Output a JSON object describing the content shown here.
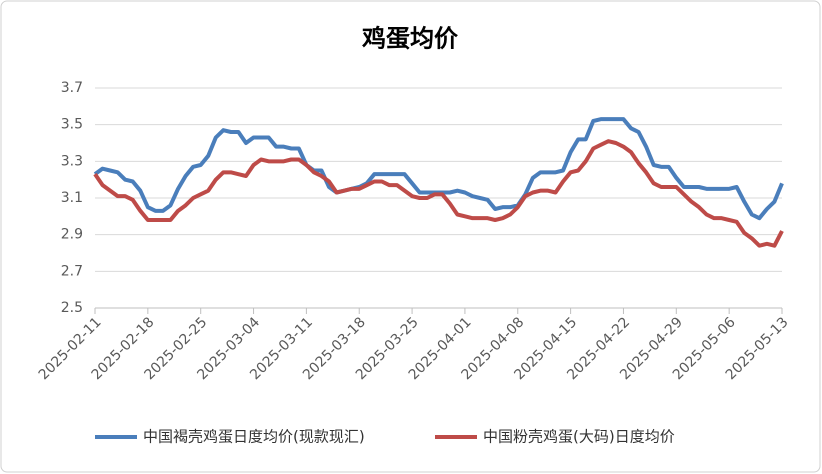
{
  "chart_data": {
    "type": "line",
    "title": "鸡蛋均价",
    "x": [
      "2025-02-11",
      "2025-02-12",
      "2025-02-13",
      "2025-02-14",
      "2025-02-15",
      "2025-02-16",
      "2025-02-17",
      "2025-02-18",
      "2025-02-19",
      "2025-02-20",
      "2025-02-21",
      "2025-02-22",
      "2025-02-23",
      "2025-02-24",
      "2025-02-25",
      "2025-02-26",
      "2025-02-27",
      "2025-02-28",
      "2025-03-01",
      "2025-03-02",
      "2025-03-03",
      "2025-03-04",
      "2025-03-05",
      "2025-03-06",
      "2025-03-07",
      "2025-03-08",
      "2025-03-09",
      "2025-03-10",
      "2025-03-11",
      "2025-03-12",
      "2025-03-13",
      "2025-03-14",
      "2025-03-15",
      "2025-03-16",
      "2025-03-17",
      "2025-03-18",
      "2025-03-19",
      "2025-03-20",
      "2025-03-21",
      "2025-03-22",
      "2025-03-23",
      "2025-03-24",
      "2025-03-25",
      "2025-03-26",
      "2025-03-27",
      "2025-03-28",
      "2025-03-29",
      "2025-03-30",
      "2025-03-31",
      "2025-04-01",
      "2025-04-02",
      "2025-04-03",
      "2025-04-04",
      "2025-04-05",
      "2025-04-06",
      "2025-04-07",
      "2025-04-08",
      "2025-04-09",
      "2025-04-10",
      "2025-04-11",
      "2025-04-12",
      "2025-04-13",
      "2025-04-14",
      "2025-04-15",
      "2025-04-16",
      "2025-04-17",
      "2025-04-18",
      "2025-04-19",
      "2025-04-20",
      "2025-04-21",
      "2025-04-22",
      "2025-04-23",
      "2025-04-24",
      "2025-04-25",
      "2025-04-26",
      "2025-04-27",
      "2025-04-28",
      "2025-04-29",
      "2025-04-30",
      "2025-05-01",
      "2025-05-02",
      "2025-05-03",
      "2025-05-04",
      "2025-05-05",
      "2025-05-06",
      "2025-05-07",
      "2025-05-08",
      "2025-05-09",
      "2025-05-10",
      "2025-05-11",
      "2025-05-12",
      "2025-05-13"
    ],
    "series": [
      {
        "name": "中国褐壳鸡蛋日度均价(现款现汇)",
        "color": "#4a7ebb",
        "values": [
          3.23,
          3.26,
          3.25,
          3.24,
          3.2,
          3.19,
          3.14,
          3.05,
          3.03,
          3.03,
          3.06,
          3.15,
          3.22,
          3.27,
          3.28,
          3.33,
          3.43,
          3.47,
          3.46,
          3.46,
          3.4,
          3.43,
          3.43,
          3.43,
          3.38,
          3.38,
          3.37,
          3.37,
          3.28,
          3.25,
          3.25,
          3.16,
          3.13,
          3.14,
          3.15,
          3.16,
          3.18,
          3.23,
          3.23,
          3.23,
          3.23,
          3.23,
          3.18,
          3.13,
          3.13,
          3.13,
          3.13,
          3.13,
          3.14,
          3.13,
          3.11,
          3.1,
          3.09,
          3.04,
          3.05,
          3.05,
          3.06,
          3.12,
          3.21,
          3.24,
          3.24,
          3.24,
          3.25,
          3.35,
          3.42,
          3.42,
          3.52,
          3.53,
          3.53,
          3.53,
          3.53,
          3.48,
          3.46,
          3.38,
          3.28,
          3.27,
          3.27,
          3.21,
          3.16,
          3.16,
          3.16,
          3.15,
          3.15,
          3.15,
          3.15,
          3.16,
          3.08,
          3.01,
          2.99,
          3.04,
          3.08,
          3.18
        ]
      },
      {
        "name": "中国粉壳鸡蛋(大码)日度均价",
        "color": "#be4b48",
        "values": [
          3.23,
          3.17,
          3.14,
          3.11,
          3.11,
          3.09,
          3.03,
          2.98,
          2.98,
          2.98,
          2.98,
          3.03,
          3.06,
          3.1,
          3.12,
          3.14,
          3.2,
          3.24,
          3.24,
          3.23,
          3.22,
          3.28,
          3.31,
          3.3,
          3.3,
          3.3,
          3.31,
          3.31,
          3.28,
          3.24,
          3.22,
          3.19,
          3.13,
          3.14,
          3.15,
          3.15,
          3.17,
          3.19,
          3.19,
          3.17,
          3.17,
          3.14,
          3.11,
          3.1,
          3.1,
          3.12,
          3.12,
          3.07,
          3.01,
          3.0,
          2.99,
          2.99,
          2.99,
          2.98,
          2.99,
          3.01,
          3.05,
          3.11,
          3.13,
          3.14,
          3.14,
          3.13,
          3.19,
          3.24,
          3.25,
          3.3,
          3.37,
          3.39,
          3.41,
          3.4,
          3.38,
          3.35,
          3.29,
          3.24,
          3.18,
          3.16,
          3.16,
          3.16,
          3.12,
          3.08,
          3.05,
          3.01,
          2.99,
          2.99,
          2.98,
          2.97,
          2.91,
          2.88,
          2.84,
          2.85,
          2.84,
          2.92
        ]
      }
    ],
    "xlim": [
      "2025-02-11",
      "2025-05-13"
    ],
    "xticks": [
      "2025-02-11",
      "2025-02-18",
      "2025-02-25",
      "2025-03-04",
      "2025-03-11",
      "2025-03-18",
      "2025-03-25",
      "2025-04-01",
      "2025-04-08",
      "2025-04-15",
      "2025-04-22",
      "2025-04-29",
      "2025-05-06",
      "2025-05-13"
    ],
    "ylim": [
      2.5,
      3.7
    ],
    "yticks": [
      2.5,
      2.7,
      2.9,
      3.1,
      3.3,
      3.5,
      3.7
    ],
    "grid": true,
    "legend": "bottom"
  }
}
